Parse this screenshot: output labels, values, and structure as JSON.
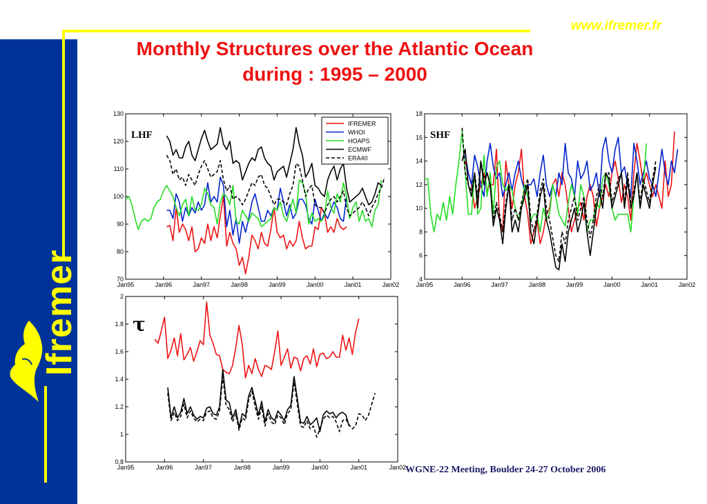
{
  "header": {
    "website": "www.ifremer.fr",
    "title_line1": "Monthly Structures over the Atlantic Ocean",
    "title_line2": "during : 1995 – 2000"
  },
  "brand": {
    "name": "Ifremer",
    "logo_icon": "dolphin-logo-icon"
  },
  "footer": {
    "text": "WGNE-22 Meeting, Boulder 24-27 October 2006"
  },
  "colors": {
    "sidebar": "#003399",
    "accent": "#ffff00",
    "title": "#ee1111",
    "IFREMER": "#ee1111",
    "WHOI": "#0022cc",
    "HOAPS": "#22dd22",
    "ECMWF": "#000000",
    "ERA40": "#000000"
  },
  "chart_data": [
    {
      "id": "lhf",
      "type": "line",
      "annotation": "LHF",
      "x_ticks": [
        "Jan95",
        "Jan96",
        "Jan97",
        "Jan98",
        "Jan99",
        "Jan00",
        "Jan01",
        "Jan02"
      ],
      "ylim": [
        70,
        130
      ],
      "y_ticks": [
        70,
        80,
        90,
        100,
        110,
        120,
        130
      ],
      "legend": [
        "IFREMER",
        "WHOI",
        "HOAPS",
        "ECMWF",
        "ERA40"
      ],
      "legend_position": "top-right",
      "series": [
        {
          "name": "IFREMER",
          "color": "#ee1111",
          "dash": false,
          "start": 13,
          "values": [
            89,
            89.5,
            84,
            96,
            87,
            90,
            88,
            84,
            89,
            80,
            81,
            85,
            83,
            90,
            84,
            89,
            85,
            93,
            100,
            82,
            87,
            83,
            81,
            75,
            78,
            72,
            78,
            86,
            84,
            81,
            87,
            83,
            82,
            88,
            96,
            87,
            85,
            86,
            81,
            84,
            82,
            84,
            91,
            85,
            81,
            82,
            82,
            89,
            88,
            96,
            94,
            87,
            89,
            87,
            92,
            89,
            88,
            89
          ]
        },
        {
          "name": "WHOI",
          "color": "#0022cc",
          "dash": false,
          "start": 13,
          "values": [
            95,
            95,
            92,
            101,
            98,
            91,
            96,
            93,
            96,
            94,
            98,
            95,
            97,
            105,
            98,
            100,
            98,
            107,
            104,
            89,
            95,
            86,
            92,
            83,
            91,
            87,
            92,
            98,
            101,
            96,
            91,
            91,
            95,
            93,
            96,
            95,
            103,
            98,
            93,
            97,
            92,
            94,
            99,
            99,
            97,
            92,
            90,
            99,
            95,
            91,
            94,
            92,
            95,
            98,
            96,
            92,
            91,
            100
          ]
        },
        {
          "name": "HOAPS",
          "color": "#22dd22",
          "dash": false,
          "start": 0,
          "values": [
            99,
            100,
            97,
            92,
            88,
            91,
            92,
            91,
            92,
            96,
            98,
            99,
            102,
            104,
            102,
            100,
            96,
            93,
            97,
            99,
            93,
            100,
            95,
            95,
            97,
            103,
            101,
            97,
            96,
            90,
            98,
            101,
            100,
            97,
            104,
            91,
            90,
            95,
            93,
            91,
            94,
            93,
            92,
            89,
            90,
            91,
            92,
            96,
            95,
            98,
            93,
            91,
            95,
            99,
            94,
            106,
            105,
            101,
            90,
            94,
            91,
            92,
            91,
            93,
            102,
            96,
            94,
            101,
            98,
            105,
            100,
            92,
            96,
            98,
            91,
            95,
            91,
            92,
            89,
            95,
            97,
            106
          ]
        },
        {
          "name": "ECMWF",
          "color": "#000000",
          "dash": false,
          "start": 13,
          "values": [
            122,
            120,
            115,
            117,
            114,
            114,
            118,
            120,
            115,
            113,
            117,
            121,
            124,
            120,
            117,
            118,
            119,
            125,
            119,
            117,
            120,
            112,
            113,
            112,
            106,
            109,
            112,
            114,
            113,
            117,
            118,
            114,
            112,
            111,
            106,
            109,
            110,
            111,
            107,
            112,
            117,
            125,
            119,
            115,
            107,
            109,
            112,
            104,
            103,
            101,
            100,
            106,
            109,
            111,
            106,
            110,
            112,
            103,
            98,
            99,
            100,
            101,
            103,
            100,
            97,
            98,
            101,
            105,
            104
          ]
        },
        {
          "name": "ERA40",
          "color": "#000000",
          "dash": true,
          "start": 13,
          "values": [
            115,
            113,
            108,
            110,
            106,
            107,
            104,
            108,
            106,
            104,
            108,
            111,
            113,
            110,
            107,
            108,
            109,
            113,
            106,
            102,
            104,
            99,
            100,
            99,
            97,
            99,
            102,
            105,
            104,
            107,
            108,
            104,
            103,
            100,
            97,
            99,
            99,
            98,
            97,
            101,
            104,
            112,
            111,
            106,
            100,
            103,
            104,
            97,
            96,
            96,
            94,
            97,
            99,
            100,
            98,
            100,
            102,
            96,
            93,
            94,
            95,
            96,
            98,
            96,
            93,
            96,
            98,
            101,
            103,
            107
          ]
        }
      ]
    },
    {
      "id": "shf",
      "type": "line",
      "annotation": "SHF",
      "x_ticks": [
        "Jan95",
        "Jan96",
        "Jan97",
        "Jan98",
        "Jan99",
        "Jan00",
        "Jan01",
        "Jan02"
      ],
      "ylim": [
        4,
        18
      ],
      "y_ticks": [
        4,
        6,
        8,
        10,
        12,
        14,
        16,
        18
      ],
      "series": [
        {
          "name": "IFREMER",
          "color": "#ee1111",
          "dash": false,
          "start": 13,
          "values": [
            14,
            13,
            12,
            10,
            11,
            12,
            13,
            11.5,
            12,
            12,
            15,
            9,
            8,
            14,
            12,
            10,
            12,
            13,
            15,
            11,
            9.5,
            7,
            8,
            9,
            7,
            8,
            9.5,
            10,
            12,
            12.5,
            11,
            13,
            12,
            10,
            8,
            9,
            10,
            10.5,
            9,
            11,
            12,
            11,
            8.5,
            10,
            11,
            12,
            11,
            13,
            14,
            12.5,
            10.5,
            12,
            11,
            9,
            13,
            15.5,
            14,
            12,
            13,
            12,
            11,
            12,
            11,
            10,
            14,
            11,
            12,
            16.5
          ]
        },
        {
          "name": "WHOI",
          "color": "#0022cc",
          "dash": false,
          "start": 13,
          "values": [
            14.5,
            13,
            12,
            14.5,
            13.5,
            12,
            11,
            14,
            15.5,
            13.5,
            12.5,
            13,
            11,
            12,
            13,
            11.5,
            13,
            14,
            12.5,
            11.5,
            12,
            12,
            12.5,
            11,
            13,
            14.5,
            12,
            11,
            12,
            11,
            13,
            12,
            15.5,
            13,
            12.5,
            11,
            14,
            12.5,
            13,
            14,
            11.5,
            12,
            13,
            11,
            15,
            16,
            14,
            13,
            15,
            16,
            13,
            13.5,
            12,
            11,
            15.5,
            14,
            12,
            13,
            14,
            12.5,
            12,
            11,
            13,
            15,
            13,
            12,
            14,
            13,
            15
          ]
        },
        {
          "name": "HOAPS",
          "color": "#22dd22",
          "dash": false,
          "start": 0,
          "values": [
            12.5,
            12.5,
            9.5,
            8,
            9.5,
            9,
            10.5,
            9,
            11,
            9.5,
            12,
            14,
            16.5,
            13,
            9.5,
            9.5,
            13,
            9.5,
            10,
            14.5,
            11,
            13,
            9.5,
            13.5,
            14,
            12,
            11.5,
            12,
            11.5,
            10,
            9,
            10,
            12,
            11,
            9,
            9.5,
            9.5,
            8,
            10,
            9,
            9.5,
            12,
            11,
            9.5,
            9,
            8.5,
            10.5,
            12,
            11,
            9.5,
            12,
            11,
            8,
            9,
            9,
            10.5,
            10,
            12.5,
            13,
            12,
            10,
            9,
            9.5,
            9.5,
            9.5,
            9.5,
            8,
            11,
            13,
            10,
            12,
            15.5
          ]
        },
        {
          "name": "ECMWF",
          "color": "#000000",
          "dash": false,
          "start": 12,
          "values": [
            14,
            15,
            12,
            11,
            13,
            10,
            14,
            12,
            13,
            12,
            8.5,
            10,
            9,
            7,
            10,
            12,
            8,
            9,
            8,
            10,
            11,
            12,
            8,
            7,
            9,
            11,
            12,
            9,
            8,
            6.5,
            5,
            4.8,
            7,
            5.5,
            8,
            9,
            10,
            8,
            9,
            10.5,
            8,
            6,
            8,
            10,
            11.5,
            10,
            13,
            12.5,
            10,
            11,
            12,
            13,
            10,
            12.5,
            10,
            11,
            13,
            10,
            12,
            11,
            10,
            12,
            13.5
          ]
        },
        {
          "name": "ERA40",
          "color": "#000000",
          "dash": true,
          "start": 12,
          "values": [
            16.8,
            13,
            12,
            11.5,
            13,
            11,
            14,
            12.5,
            13,
            12,
            9,
            10.5,
            9.5,
            8,
            10.5,
            12,
            9,
            10,
            9,
            10.5,
            11.5,
            12.5,
            9,
            8,
            9.5,
            11.5,
            12.5,
            10,
            9,
            7.5,
            6,
            5.5,
            8,
            7,
            9,
            10,
            11,
            9,
            10,
            11,
            9,
            7.5,
            9,
            11,
            12,
            11,
            13,
            13,
            10.5,
            11.5,
            12.5,
            13,
            10.5,
            13,
            10.5,
            11.5,
            13,
            10.5,
            12.5,
            11.5,
            10.5,
            12.5,
            14
          ]
        }
      ]
    },
    {
      "id": "tau",
      "type": "line",
      "annotation": "τ",
      "x_ticks": [
        "Jan95",
        "Jan96",
        "Jan97",
        "Jan98",
        "Jan99",
        "Jan00",
        "Jan01",
        "Jan02"
      ],
      "ylim": [
        0.8,
        2
      ],
      "y_ticks": [
        0.8,
        1,
        1.2,
        1.4,
        1.6,
        1.8,
        2
      ],
      "series": [
        {
          "name": "IFREMER",
          "color": "#ee1111",
          "dash": false,
          "start": 9,
          "values": [
            1.69,
            1.66,
            1.75,
            1.85,
            1.55,
            1.61,
            1.7,
            1.57,
            1.73,
            1.54,
            1.58,
            1.63,
            1.53,
            1.6,
            1.68,
            1.65,
            1.96,
            1.72,
            1.66,
            1.58,
            1.57,
            1.47,
            1.45,
            1.44,
            1.5,
            1.63,
            1.79,
            1.65,
            1.41,
            1.5,
            1.44,
            1.55,
            1.47,
            1.42,
            1.5,
            1.49,
            1.47,
            1.6,
            1.75,
            1.5,
            1.56,
            1.62,
            1.48,
            1.56,
            1.55,
            1.46,
            1.55,
            1.57,
            1.51,
            1.62,
            1.49,
            1.58,
            1.59,
            1.55,
            1.56,
            1.6,
            1.56,
            1.56,
            1.72,
            1.61,
            1.7,
            1.58,
            1.74,
            1.84
          ]
        },
        {
          "name": "ECMWF",
          "color": "#000000",
          "dash": false,
          "start": 13,
          "values": [
            1.34,
            1.12,
            1.2,
            1.12,
            1.16,
            1.26,
            1.15,
            1.2,
            1.14,
            1.11,
            1.13,
            1.12,
            1.19,
            1.2,
            1.15,
            1.14,
            1.2,
            1.47,
            1.25,
            1.23,
            1.12,
            1.18,
            1.05,
            1.15,
            1.13,
            1.28,
            1.34,
            1.24,
            1.14,
            1.24,
            1.09,
            1.18,
            1.12,
            1.1,
            1.17,
            1.14,
            1.1,
            1.18,
            1.21,
            1.42,
            1.26,
            1.09,
            1.08,
            1.13,
            1.07,
            1.09,
            1.12,
            1.02,
            1.14,
            1.17,
            1.15,
            1.16,
            1.12,
            1.15,
            1.16,
            1.14,
            1.06
          ]
        },
        {
          "name": "ERA40",
          "color": "#000000",
          "dash": true,
          "start": 13,
          "values": [
            1.3,
            1.1,
            1.16,
            1.1,
            1.13,
            1.22,
            1.12,
            1.17,
            1.12,
            1.09,
            1.11,
            1.1,
            1.16,
            1.17,
            1.12,
            1.11,
            1.17,
            1.42,
            1.21,
            1.18,
            1.09,
            1.15,
            1.03,
            1.12,
            1.1,
            1.25,
            1.31,
            1.2,
            1.11,
            1.2,
            1.06,
            1.15,
            1.09,
            1.07,
            1.14,
            1.12,
            1.07,
            1.15,
            1.18,
            1.38,
            1.22,
            1.06,
            1.05,
            1.1,
            1.04,
            1.06,
            0.98,
            1.04,
            1.11,
            1.14,
            1.12,
            1.13,
            1.09,
            1.02,
            1.1,
            1.11,
            1.07,
            1.04,
            1.06,
            1.15,
            1.14,
            1.1,
            1.14,
            1.22,
            1.3
          ]
        }
      ]
    }
  ]
}
